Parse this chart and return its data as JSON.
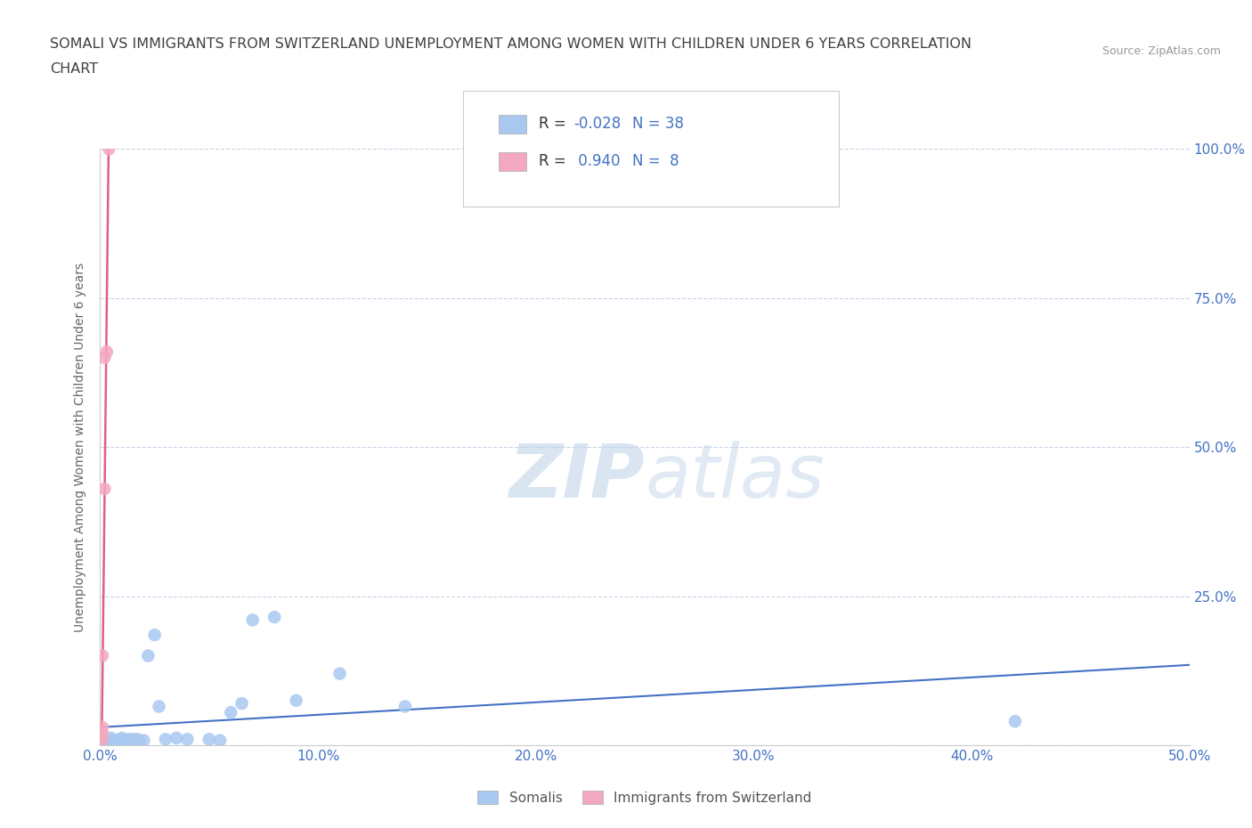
{
  "title_line1": "SOMALI VS IMMIGRANTS FROM SWITZERLAND UNEMPLOYMENT AMONG WOMEN WITH CHILDREN UNDER 6 YEARS CORRELATION",
  "title_line2": "CHART",
  "source": "Source: ZipAtlas.com",
  "ylabel": "Unemployment Among Women with Children Under 6 years",
  "xlim": [
    0.0,
    0.5
  ],
  "ylim": [
    0.0,
    1.0
  ],
  "xticks": [
    0.0,
    0.1,
    0.2,
    0.3,
    0.4,
    0.5
  ],
  "yticks": [
    0.0,
    0.25,
    0.5,
    0.75,
    1.0
  ],
  "xticklabels": [
    "0.0%",
    "10.0%",
    "20.0%",
    "30.0%",
    "40.0%",
    "50.0%"
  ],
  "left_yticklabels": [
    "",
    "",
    "",
    "",
    ""
  ],
  "right_yticklabels": [
    "",
    "25.0%",
    "50.0%",
    "75.0%",
    "100.0%"
  ],
  "legend_R1": "R = ",
  "legend_V1": "-0.028",
  "legend_N1": "N = 38",
  "legend_R2": "R =  ",
  "legend_V2": "0.940",
  "legend_N2": "N =  8",
  "somali_color": "#a8c8f0",
  "swiss_color": "#f4a8c0",
  "somali_line_color": "#4472c4",
  "swiss_line_color": "#e06080",
  "watermark_zip": "ZIP",
  "watermark_atlas": "atlas",
  "R_color": "#4472c4",
  "background_color": "#ffffff",
  "grid_color": "#c8d4e8",
  "title_color": "#404040",
  "tick_label_color": "#4472c4",
  "somali_x": [
    0.002,
    0.003,
    0.005,
    0.005,
    0.007,
    0.008,
    0.008,
    0.009,
    0.01,
    0.01,
    0.01,
    0.012,
    0.012,
    0.013,
    0.013,
    0.014,
    0.015,
    0.015,
    0.016,
    0.017,
    0.018,
    0.02,
    0.022,
    0.025,
    0.027,
    0.03,
    0.035,
    0.04,
    0.05,
    0.055,
    0.06,
    0.065,
    0.07,
    0.08,
    0.09,
    0.11,
    0.14,
    0.42
  ],
  "somali_y": [
    0.01,
    0.005,
    0.008,
    0.012,
    0.006,
    0.005,
    0.008,
    0.01,
    0.005,
    0.008,
    0.012,
    0.005,
    0.008,
    0.005,
    0.01,
    0.008,
    0.005,
    0.01,
    0.008,
    0.01,
    0.005,
    0.008,
    0.15,
    0.185,
    0.065,
    0.01,
    0.012,
    0.01,
    0.01,
    0.008,
    0.055,
    0.07,
    0.21,
    0.215,
    0.075,
    0.12,
    0.065,
    0.04
  ],
  "swiss_x": [
    0.001,
    0.001,
    0.001,
    0.001,
    0.002,
    0.002,
    0.003,
    0.004
  ],
  "swiss_y": [
    0.01,
    0.02,
    0.03,
    0.15,
    0.43,
    0.65,
    0.66,
    1.0
  ]
}
